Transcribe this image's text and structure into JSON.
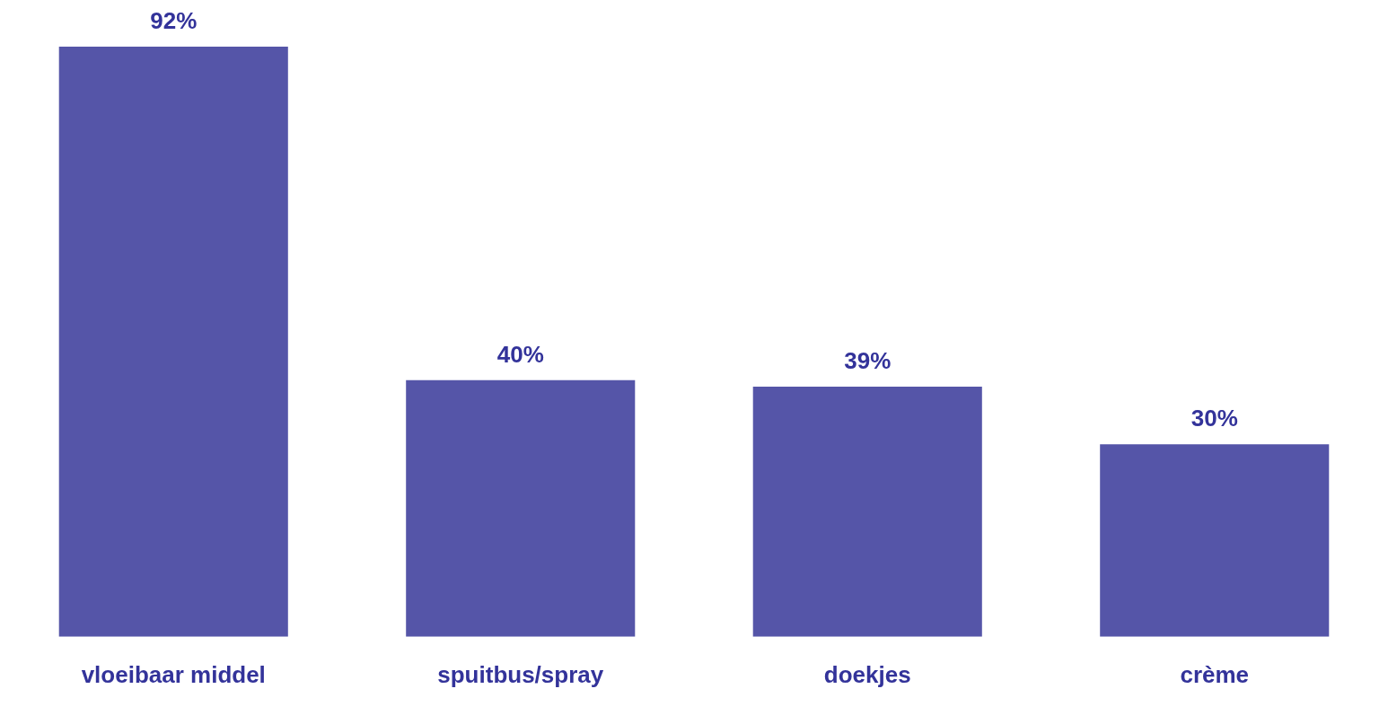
{
  "chart_data": {
    "type": "bar",
    "categories": [
      "vloeibaar middel",
      "spuitbus/spray",
      "doekjes",
      "crème"
    ],
    "values": [
      92,
      40,
      39,
      30
    ],
    "value_labels": [
      "92%",
      "40%",
      "39%",
      "30%"
    ],
    "color": "#5555a8",
    "ylim": [
      0,
      92
    ],
    "tick_labels": "x",
    "grid": false,
    "legend": false
  }
}
